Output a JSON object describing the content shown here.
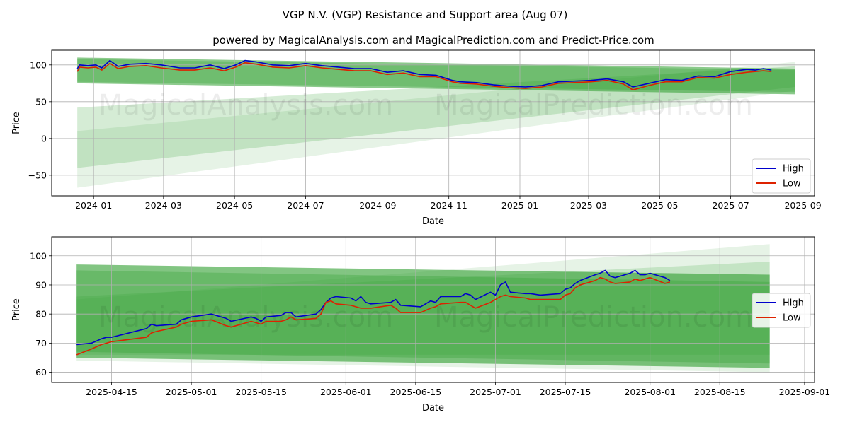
{
  "title": "VGP N.V. (VGP) Resistance and Support area (Aug 07)",
  "subtitle": "powered by MagicalAnalysis.com and MagicalPrediction.com and Predict-Price.com",
  "watermarks": [
    "MagicalAnalysis.com",
    "MagicalPrediction.com"
  ],
  "colors": {
    "high": "#0000cc",
    "low": "#dd2200",
    "band": "#2e9e2e",
    "grid": "#b0b0b0"
  },
  "chart_data": [
    {
      "type": "line",
      "name": "full-range",
      "xlabel": "Date",
      "ylabel": "Price",
      "xlim": [
        "2023-11-26",
        "2025-09-11"
      ],
      "ylim": [
        -78,
        120
      ],
      "xticks": [
        "2024-01-01",
        "2024-03-01",
        "2024-05-01",
        "2024-07-01",
        "2024-09-01",
        "2024-11-01",
        "2025-01-01",
        "2025-03-01",
        "2025-05-01",
        "2025-07-01",
        "2025-09-01"
      ],
      "xtick_labels": [
        "2024-01",
        "2024-03",
        "2024-05",
        "2024-07",
        "2024-09",
        "2024-11",
        "2025-01",
        "2025-03",
        "2025-05",
        "2025-07",
        "2025-09"
      ],
      "yticks": [
        -50,
        0,
        50,
        100
      ],
      "grid": true,
      "legend": "bottom-right",
      "bands": [
        {
          "x": [
            "2023-12-18",
            "2025-08-25"
          ],
          "upper": [
            110,
            95
          ],
          "lower": [
            75,
            60
          ],
          "opacity": 0.55
        },
        {
          "x": [
            "2023-12-18",
            "2025-08-25"
          ],
          "upper": [
            108,
            93
          ],
          "lower": [
            77,
            63
          ],
          "opacity": 0.3
        },
        {
          "x": [
            "2023-12-18",
            "2025-08-25"
          ],
          "upper": [
            42,
            98
          ],
          "lower": [
            -40,
            70
          ],
          "opacity": 0.2
        },
        {
          "x": [
            "2023-12-18",
            "2025-08-25"
          ],
          "upper": [
            10,
            104
          ],
          "lower": [
            -67,
            65
          ],
          "opacity": 0.12
        }
      ],
      "series": [
        {
          "name": "High",
          "color": "#0000cc",
          "x": [
            "2023-12-18",
            "2023-12-20",
            "2023-12-27",
            "2024-01-03",
            "2024-01-08",
            "2024-01-15",
            "2024-01-22",
            "2024-02-01",
            "2024-02-15",
            "2024-02-28",
            "2024-03-15",
            "2024-03-28",
            "2024-04-10",
            "2024-04-22",
            "2024-05-02",
            "2024-05-10",
            "2024-05-20",
            "2024-06-03",
            "2024-06-17",
            "2024-07-01",
            "2024-07-15",
            "2024-07-29",
            "2024-08-12",
            "2024-08-26",
            "2024-09-09",
            "2024-09-23",
            "2024-10-07",
            "2024-10-21",
            "2024-11-04",
            "2024-11-11",
            "2024-11-25",
            "2024-12-09",
            "2024-12-23",
            "2025-01-06",
            "2025-01-20",
            "2025-02-03",
            "2025-02-17",
            "2025-03-03",
            "2025-03-17",
            "2025-03-31",
            "2025-04-08",
            "2025-04-22",
            "2025-05-06",
            "2025-05-20",
            "2025-06-03",
            "2025-06-17",
            "2025-07-01",
            "2025-07-15",
            "2025-07-22",
            "2025-07-29",
            "2025-08-05"
          ],
          "y": [
            95,
            100,
            99,
            100,
            96,
            106,
            98,
            101,
            102,
            100,
            96,
            96,
            100,
            95,
            100,
            106,
            104,
            100,
            99,
            102,
            99,
            97,
            95,
            95,
            90,
            92,
            87,
            86,
            79,
            77,
            76,
            73,
            71,
            70,
            72,
            77,
            78,
            79,
            81,
            77,
            70,
            75,
            80,
            79,
            85,
            84,
            91,
            94,
            93,
            95,
            93
          ]
        },
        {
          "name": "Low",
          "color": "#dd2200",
          "x": [
            "2023-12-18",
            "2023-12-20",
            "2023-12-27",
            "2024-01-03",
            "2024-01-08",
            "2024-01-15",
            "2024-01-22",
            "2024-02-01",
            "2024-02-15",
            "2024-02-28",
            "2024-03-15",
            "2024-03-28",
            "2024-04-10",
            "2024-04-22",
            "2024-05-02",
            "2024-05-10",
            "2024-05-20",
            "2024-06-03",
            "2024-06-17",
            "2024-07-01",
            "2024-07-15",
            "2024-07-29",
            "2024-08-12",
            "2024-08-26",
            "2024-09-09",
            "2024-09-23",
            "2024-10-07",
            "2024-10-21",
            "2024-11-04",
            "2024-11-11",
            "2024-11-25",
            "2024-12-09",
            "2024-12-23",
            "2025-01-06",
            "2025-01-20",
            "2025-02-03",
            "2025-02-17",
            "2025-03-03",
            "2025-03-17",
            "2025-03-31",
            "2025-04-08",
            "2025-04-22",
            "2025-05-06",
            "2025-05-20",
            "2025-06-03",
            "2025-06-17",
            "2025-07-01",
            "2025-07-15",
            "2025-07-22",
            "2025-07-29",
            "2025-08-05"
          ],
          "y": [
            91,
            97,
            96,
            97,
            93,
            102,
            95,
            98,
            99,
            96,
            93,
            93,
            96,
            92,
            97,
            103,
            101,
            97,
            96,
            99,
            96,
            94,
            92,
            92,
            87,
            89,
            84,
            84,
            77,
            75,
            74,
            71,
            69,
            68,
            70,
            75,
            76,
            77,
            79,
            74,
            66,
            72,
            77,
            77,
            83,
            82,
            87,
            90,
            91,
            92,
            91
          ]
        }
      ]
    },
    {
      "type": "line",
      "name": "zoomed",
      "xlabel": "Date",
      "ylabel": "Price",
      "xlim": [
        "2025-04-03",
        "2025-09-03"
      ],
      "ylim": [
        56.5,
        106.5
      ],
      "xticks": [
        "2025-04-15",
        "2025-05-01",
        "2025-05-15",
        "2025-06-01",
        "2025-06-15",
        "2025-07-01",
        "2025-07-15",
        "2025-08-01",
        "2025-08-15",
        "2025-09-01"
      ],
      "xtick_labels": [
        "2025-04-15",
        "2025-05-01",
        "2025-05-15",
        "2025-06-01",
        "2025-06-15",
        "2025-07-01",
        "2025-07-15",
        "2025-08-01",
        "2025-08-15",
        "2025-09-01"
      ],
      "yticks": [
        60,
        70,
        80,
        90,
        100
      ],
      "grid": true,
      "legend": "center-right",
      "bands": [
        {
          "x": [
            "2025-04-08",
            "2025-08-25"
          ],
          "upper": [
            97,
            93.5
          ],
          "lower": [
            65,
            61.5
          ],
          "opacity": 0.6
        },
        {
          "x": [
            "2025-04-08",
            "2025-08-25"
          ],
          "upper": [
            95,
            91
          ],
          "lower": [
            67,
            63
          ],
          "opacity": 0.3
        },
        {
          "x": [
            "2025-04-08",
            "2025-08-25"
          ],
          "upper": [
            86,
            98
          ],
          "lower": [
            66,
            66
          ],
          "opacity": 0.18
        },
        {
          "x": [
            "2025-04-08",
            "2025-08-25"
          ],
          "upper": [
            85,
            104
          ],
          "lower": [
            64,
            60
          ],
          "opacity": 0.12
        }
      ],
      "series": [
        {
          "name": "High",
          "color": "#0000cc",
          "x": [
            "2025-04-08",
            "2025-04-11",
            "2025-04-13",
            "2025-04-14",
            "2025-04-15",
            "2025-04-22",
            "2025-04-23",
            "2025-04-24",
            "2025-04-28",
            "2025-04-29",
            "2025-05-01",
            "2025-05-05",
            "2025-05-08",
            "2025-05-09",
            "2025-05-13",
            "2025-05-14",
            "2025-05-15",
            "2025-05-16",
            "2025-05-19",
            "2025-05-20",
            "2025-05-21",
            "2025-05-22",
            "2025-05-26",
            "2025-05-27",
            "2025-05-28",
            "2025-05-29",
            "2025-05-30",
            "2025-06-02",
            "2025-06-03",
            "2025-06-04",
            "2025-06-05",
            "2025-06-06",
            "2025-06-10",
            "2025-06-11",
            "2025-06-12",
            "2025-06-16",
            "2025-06-18",
            "2025-06-19",
            "2025-06-20",
            "2025-06-24",
            "2025-06-25",
            "2025-06-26",
            "2025-06-27",
            "2025-06-30",
            "2025-07-01",
            "2025-07-02",
            "2025-07-03",
            "2025-07-04",
            "2025-07-07",
            "2025-07-08",
            "2025-07-10",
            "2025-07-14",
            "2025-07-15",
            "2025-07-16",
            "2025-07-17",
            "2025-07-18",
            "2025-07-21",
            "2025-07-22",
            "2025-07-23",
            "2025-07-24",
            "2025-07-25",
            "2025-07-28",
            "2025-07-29",
            "2025-07-30",
            "2025-07-31",
            "2025-08-01",
            "2025-08-04",
            "2025-08-05"
          ],
          "y": [
            69.5,
            70,
            71.5,
            72,
            72,
            75,
            76.5,
            76,
            76.5,
            78,
            79,
            80,
            78.5,
            77.5,
            79,
            78.5,
            77.5,
            79,
            79.5,
            80.5,
            80.5,
            79,
            80,
            81.5,
            84,
            85.5,
            86,
            85.5,
            84.5,
            86,
            84,
            83.5,
            84,
            85,
            83,
            82.5,
            84.5,
            84,
            86,
            86,
            87,
            86.5,
            85,
            87.5,
            86.5,
            90,
            91,
            87.5,
            87,
            87,
            86.5,
            87,
            88.5,
            89,
            90.5,
            91.5,
            93.5,
            94,
            95,
            93,
            92.5,
            94,
            95,
            93.5,
            93.5,
            94,
            92.5,
            91.5
          ]
        },
        {
          "name": "Low",
          "color": "#dd2200",
          "x": [
            "2025-04-08",
            "2025-04-11",
            "2025-04-13",
            "2025-04-14",
            "2025-04-15",
            "2025-04-22",
            "2025-04-23",
            "2025-04-24",
            "2025-04-28",
            "2025-04-29",
            "2025-05-01",
            "2025-05-05",
            "2025-05-08",
            "2025-05-09",
            "2025-05-13",
            "2025-05-14",
            "2025-05-15",
            "2025-05-16",
            "2025-05-19",
            "2025-05-20",
            "2025-05-21",
            "2025-05-22",
            "2025-05-26",
            "2025-05-27",
            "2025-05-28",
            "2025-05-29",
            "2025-05-30",
            "2025-06-02",
            "2025-06-03",
            "2025-06-04",
            "2025-06-05",
            "2025-06-06",
            "2025-06-10",
            "2025-06-11",
            "2025-06-12",
            "2025-06-16",
            "2025-06-18",
            "2025-06-19",
            "2025-06-20",
            "2025-06-24",
            "2025-06-25",
            "2025-06-26",
            "2025-06-27",
            "2025-06-30",
            "2025-07-01",
            "2025-07-02",
            "2025-07-03",
            "2025-07-04",
            "2025-07-07",
            "2025-07-08",
            "2025-07-10",
            "2025-07-14",
            "2025-07-15",
            "2025-07-16",
            "2025-07-17",
            "2025-07-18",
            "2025-07-21",
            "2025-07-22",
            "2025-07-23",
            "2025-07-24",
            "2025-07-25",
            "2025-07-28",
            "2025-07-29",
            "2025-07-30",
            "2025-07-31",
            "2025-08-01",
            "2025-08-04",
            "2025-08-05"
          ],
          "y": [
            66,
            68,
            69.5,
            70,
            70.5,
            72,
            73.5,
            74,
            75.5,
            76.5,
            77.5,
            78,
            76,
            75.5,
            77.5,
            77,
            76.5,
            77.5,
            77.5,
            78,
            79,
            78,
            78.5,
            80,
            84,
            84.5,
            83.5,
            83,
            82.5,
            82,
            82,
            82,
            83,
            82,
            80.5,
            80.5,
            82,
            82.5,
            83.5,
            84,
            84,
            83,
            82,
            84,
            85,
            86,
            86.5,
            86,
            85.5,
            85,
            85,
            85,
            86.5,
            87,
            89,
            90,
            91.5,
            92.5,
            92,
            91,
            90.5,
            91,
            92,
            91.5,
            92,
            92.5,
            90.5,
            91
          ]
        }
      ]
    }
  ]
}
